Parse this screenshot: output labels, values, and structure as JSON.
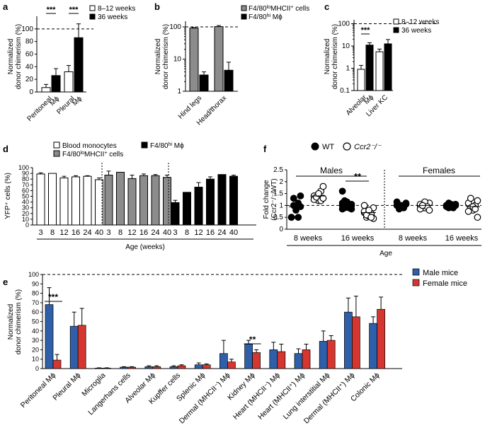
{
  "panels": {
    "a": {
      "label": "a",
      "ylabel": [
        "Normalized",
        "donor chimerism (%)"
      ],
      "yticks": [
        "0",
        "20",
        "40",
        "60",
        "80",
        "100"
      ],
      "categories": [
        [
          "Peritoneal",
          "Mϕ"
        ],
        [
          "Pleural",
          "Mϕ"
        ]
      ],
      "legend": [
        "8–12 weeks",
        "36 weeks"
      ],
      "signif": [
        "***",
        "***"
      ]
    },
    "b": {
      "label": "b",
      "ylabel": [
        "Normalized",
        "donor chimerism (%)"
      ],
      "yticks": [
        "1",
        "10",
        "100"
      ],
      "categories": [
        "Hind legs",
        "Head/thorax"
      ],
      "legend_html": [
        "F4/80<tspan baseline-shift='super' font-size='7'>lo</tspan>MHCII<tspan baseline-shift='super' font-size='7'>+</tspan> cells",
        "F4/80<tspan baseline-shift='super' font-size='7'>hi</tspan> Mϕ"
      ],
      "legend": [
        "F4/80loMHCII+ cells",
        "F4/80hi Mϕ"
      ]
    },
    "c": {
      "label": "c",
      "ylabel": [
        "Normalized",
        "donor chimerism (%)"
      ],
      "yticks": [
        "0.1",
        "1",
        "10",
        "100"
      ],
      "categories": [
        [
          "Alveolar",
          "Mϕ"
        ],
        "Liver KC"
      ],
      "legend": [
        "8–12 weeks",
        "36 weeks"
      ],
      "signif": [
        "***"
      ]
    },
    "d": {
      "label": "d",
      "ylabel": "YFP⁺ cells (%)",
      "yticks": [
        "0",
        "10",
        "20",
        "30",
        "40",
        "50",
        "60",
        "70",
        "80",
        "90",
        "100"
      ],
      "ages": [
        "3",
        "8",
        "12",
        "16",
        "24",
        "40"
      ],
      "xlabel": "Age (weeks)",
      "legend": [
        "Blood monocytes",
        "F4/80loMHCII+ cells",
        "F4/80hi Mϕ"
      ]
    },
    "e": {
      "label": "e",
      "ylabel": [
        "Normalized",
        "donor chimerism (%)"
      ],
      "yticks": [
        "0",
        "10",
        "20",
        "30",
        "40",
        "50",
        "60",
        "70",
        "80",
        "90",
        "100"
      ],
      "legend": [
        "Male mice",
        "Female mice"
      ],
      "signif": [
        "***",
        "**"
      ]
    },
    "f": {
      "label": "f",
      "ylabel": [
        "Fold change",
        "(Ccr2⁻/⁻/WT)"
      ],
      "yticks": [
        "0",
        "0.5",
        "1",
        "1.5",
        "2",
        "2.5"
      ],
      "legend": [
        "WT",
        "Ccr2⁻/⁻"
      ],
      "groups": [
        "Males",
        "Females"
      ],
      "xticks": [
        "8 weeks",
        "16 weeks",
        "8 weeks",
        "16 weeks"
      ],
      "xlabel": "Age",
      "signif": [
        "**"
      ]
    }
  },
  "colors": {
    "white": "#ffffff",
    "black": "#000000",
    "gray": "#8c8c8c",
    "male": "#2f5fa8",
    "female": "#d6362f"
  },
  "chart_data": [
    {
      "panel": "a",
      "type": "bar",
      "categories": [
        "Peritoneal Mϕ",
        "Pleural Mϕ"
      ],
      "series": [
        {
          "name": "8–12 weeks",
          "values": [
            7,
            32
          ],
          "err": [
            5,
            10
          ]
        },
        {
          "name": "36 weeks",
          "values": [
            26,
            86
          ],
          "err": [
            11,
            22
          ]
        }
      ],
      "ylim": [
        0,
        120
      ],
      "reference_line": 100
    },
    {
      "panel": "b",
      "type": "bar",
      "yscale": "log",
      "categories": [
        "Hind legs",
        "Head/thorax"
      ],
      "series": [
        {
          "name": "F4/80loMHCII+ cells",
          "values": [
            92,
            102
          ],
          "err": [
            3,
            8
          ]
        },
        {
          "name": "F4/80hi Mϕ",
          "values": [
            3.2,
            4.5
          ],
          "err": [
            0.8,
            3.5
          ]
        }
      ],
      "ylim": [
        1,
        150
      ],
      "reference_line": 100
    },
    {
      "panel": "c",
      "type": "bar",
      "yscale": "log",
      "categories": [
        "Alveolar Mϕ",
        "Liver KC"
      ],
      "series": [
        {
          "name": "8–12 weeks",
          "values": [
            0.9,
            5.5
          ],
          "err": [
            0.45,
            1.8
          ]
        },
        {
          "name": "36 weeks",
          "values": [
            11,
            12.5
          ],
          "err": [
            3,
            7
          ]
        }
      ],
      "ylim": [
        0.1,
        150
      ],
      "reference_line": 100
    },
    {
      "panel": "d",
      "type": "bar",
      "categories": [
        "3",
        "8",
        "12",
        "16",
        "24",
        "40"
      ],
      "series": [
        {
          "name": "Blood monocytes",
          "values": [
            89,
            90,
            82,
            84,
            85,
            79
          ],
          "err": [
            2,
            0,
            3,
            2,
            1,
            3
          ]
        },
        {
          "name": "F4/80loMHCII+ cells",
          "values": [
            87,
            92,
            81,
            86,
            86,
            83
          ],
          "err": [
            7,
            0,
            6,
            3,
            2,
            4
          ]
        },
        {
          "name": "F4/80hi Mϕ",
          "values": [
            39,
            57,
            66,
            80,
            88,
            85
          ],
          "err": [
            4,
            0,
            8,
            4,
            0,
            2
          ]
        }
      ],
      "xlabel": "Age (weeks)",
      "ylim": [
        0,
        100
      ]
    },
    {
      "panel": "e",
      "type": "bar",
      "categories": [
        "Peritoneal Mϕ",
        "Pleural Mϕ",
        "Microglia",
        "Langerhans cells",
        "Alveolar Mϕ",
        "Kupffer cells",
        "Splenic Mϕ",
        "Dermal (MHCII⁻) Mϕ",
        "Kidney Mϕ",
        "Heart (MHCII⁻) Mϕ",
        "Heart (MHCII⁺) Mϕ",
        "Lung interstitial Mϕ",
        "Dermal (MHCII⁺) Mϕ",
        "Colonic Mϕ"
      ],
      "series": [
        {
          "name": "Male mice",
          "values": [
            68,
            45,
            0.5,
            1.5,
            2,
            2,
            4,
            16,
            26,
            20,
            16,
            29,
            60,
            48
          ],
          "err": [
            18,
            15,
            0.3,
            0.5,
            1,
            1,
            2,
            14,
            4,
            8,
            5,
            11,
            15,
            7
          ]
        },
        {
          "name": "Female mice",
          "values": [
            9,
            46,
            0.5,
            1.5,
            2,
            3,
            4,
            7,
            17,
            18,
            20,
            30,
            55,
            63
          ],
          "err": [
            6,
            18,
            0.3,
            0.5,
            1,
            1,
            1,
            3,
            3,
            8,
            6,
            5,
            22,
            13
          ]
        }
      ],
      "ylim": [
        0,
        100
      ],
      "reference_line": 100
    },
    {
      "panel": "f",
      "type": "scatter",
      "groups": [
        "Males 8 weeks",
        "Males 16 weeks",
        "Females 8 weeks",
        "Females 16 weeks"
      ],
      "series": [
        {
          "name": "WT",
          "points": [
            [
              0.5,
              1.0,
              0.9,
              1.1,
              1.4,
              0.5,
              1.3,
              0.8,
              0.5,
              0.95
            ],
            [
              1.6,
              1.2,
              1.0,
              0.9,
              0.85,
              1.1,
              1.0,
              0.95,
              0.9,
              1.05,
              1.0,
              0.9,
              1.15,
              0.95,
              1.0,
              0.85
            ],
            [
              1.15,
              1.0,
              0.95,
              0.9,
              1.05,
              1.0,
              0.85,
              1.0,
              0.95,
              1.1
            ],
            [
              1.0,
              0.95,
              1.05,
              0.9,
              1.0,
              0.95,
              1.1,
              1.0,
              0.95,
              1.05,
              1.0,
              0.9
            ]
          ],
          "means": [
            0.95,
            1.0,
            1.0,
            1.0
          ]
        },
        {
          "name": "Ccr2-/-",
          "points": [
            [
              1.4,
              1.3,
              1.2,
              1.6,
              1.8,
              1.25,
              1.35,
              1.5,
              1.2,
              1.3
            ],
            [
              0.7,
              0.5,
              0.8,
              0.6,
              0.45,
              1.0,
              0.7,
              0.55,
              0.65,
              0.9,
              0.75,
              0.6,
              0.8,
              0.5
            ],
            [
              1.0,
              0.95,
              0.9,
              1.05,
              1.1,
              0.85,
              1.0,
              1.15,
              0.95,
              0.8,
              1.05,
              1.0
            ],
            [
              1.1,
              0.9,
              0.8,
              1.0,
              0.5,
              0.75,
              1.3,
              0.95,
              0.85,
              1.2
            ]
          ],
          "means": [
            1.4,
            0.7,
            1.0,
            0.95
          ]
        }
      ],
      "xlabel": "Age",
      "ylim": [
        0,
        2.5
      ],
      "reference_line": 1
    }
  ]
}
